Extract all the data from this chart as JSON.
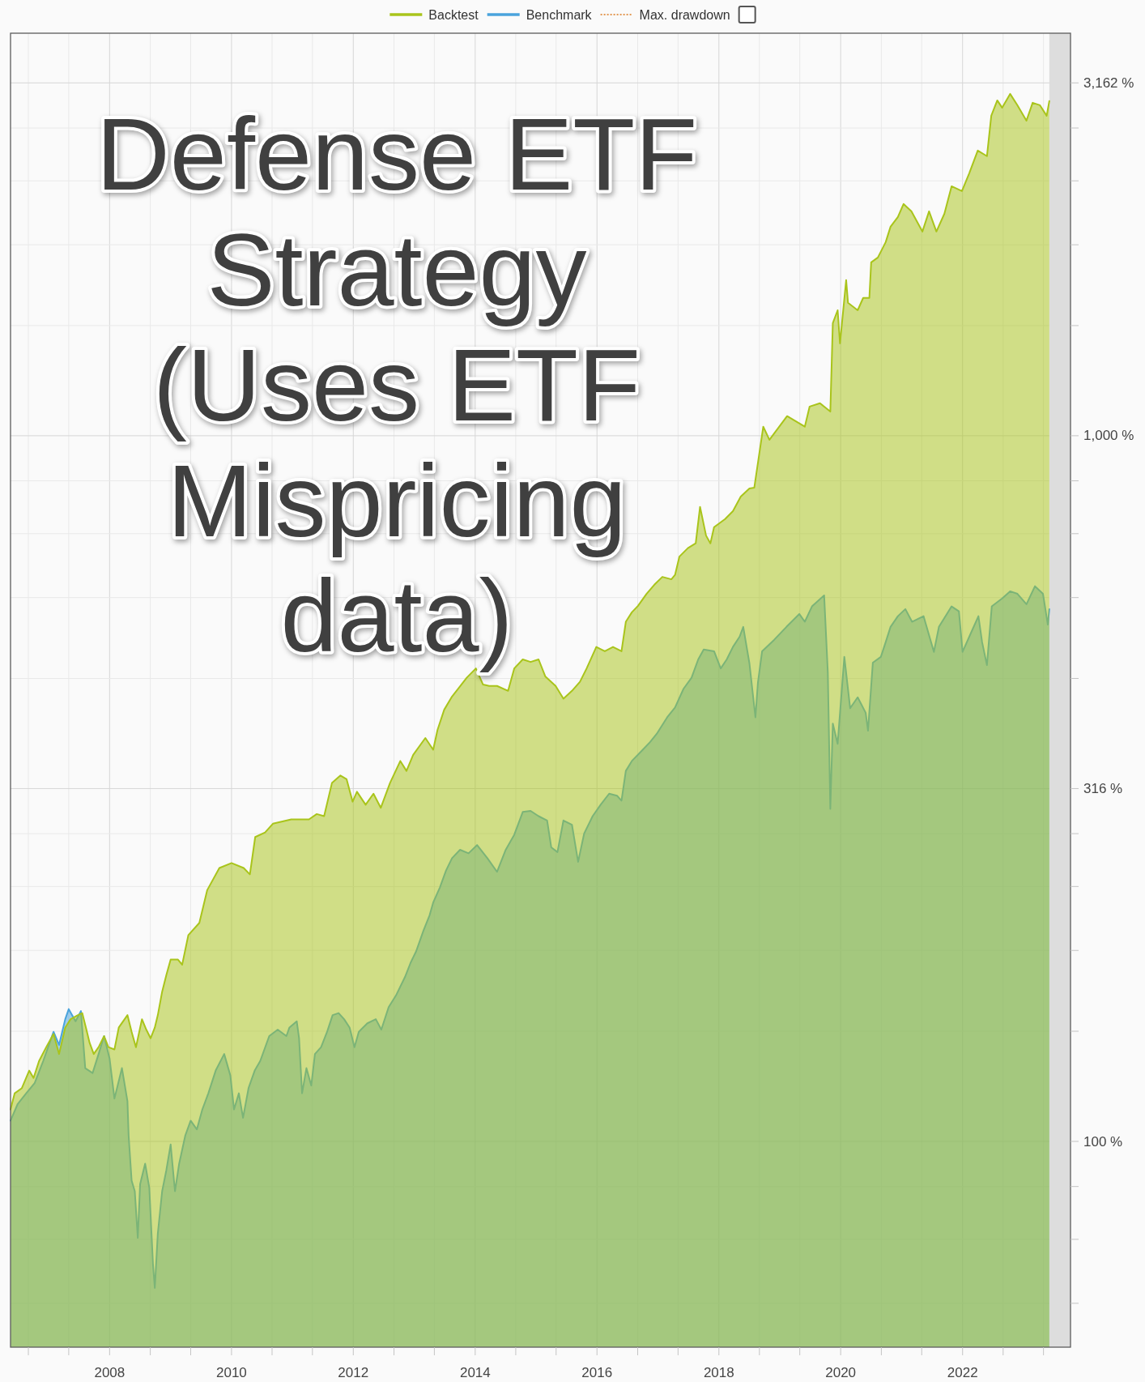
{
  "chart_data": {
    "type": "area",
    "title": "Defense ETF Strategy (Uses ETF Mispricing data)",
    "log": "y",
    "grid": true,
    "legend": "top",
    "xlim": [
      "2006-05-17",
      "2023-10-10"
    ],
    "xticks": [
      {
        "value": "2006-09-01",
        "label": null
      },
      {
        "value": "2007-05-01",
        "label": null
      },
      {
        "value": "2008-01-01",
        "label": "2008"
      },
      {
        "value": "2008-09-01",
        "label": null
      },
      {
        "value": "2009-05-01",
        "label": null
      },
      {
        "value": "2010-01-01",
        "label": "2010"
      },
      {
        "value": "2010-09-01",
        "label": null
      },
      {
        "value": "2011-05-01",
        "label": null
      },
      {
        "value": "2012-01-01",
        "label": "2012"
      },
      {
        "value": "2012-09-01",
        "label": null
      },
      {
        "value": "2013-05-01",
        "label": null
      },
      {
        "value": "2014-01-01",
        "label": "2014"
      },
      {
        "value": "2014-09-01",
        "label": null
      },
      {
        "value": "2015-05-01",
        "label": null
      },
      {
        "value": "2016-01-01",
        "label": "2016"
      },
      {
        "value": "2016-09-01",
        "label": null
      },
      {
        "value": "2017-05-01",
        "label": null
      },
      {
        "value": "2018-01-01",
        "label": "2018"
      },
      {
        "value": "2018-09-01",
        "label": null
      },
      {
        "value": "2019-05-01",
        "label": null
      },
      {
        "value": "2020-01-01",
        "label": "2020"
      },
      {
        "value": "2020-09-01",
        "label": null
      },
      {
        "value": "2021-05-01",
        "label": null
      },
      {
        "value": "2022-01-01",
        "label": "2022"
      },
      {
        "value": "2022-09-01",
        "label": null
      },
      {
        "value": "2023-05-01",
        "label": null
      }
    ],
    "ylim": [
      51.1,
      3719
    ],
    "yticks": [
      {
        "value": 58.97,
        "label": null
      },
      {
        "value": 72.65,
        "label": null
      },
      {
        "value": 86.32,
        "label": null
      },
      {
        "value": 100,
        "label": "100 %"
      },
      {
        "value": 143.25,
        "label": null
      },
      {
        "value": 186.49,
        "label": null
      },
      {
        "value": 229.74,
        "label": null
      },
      {
        "value": 272.98,
        "label": null
      },
      {
        "value": 316.23,
        "label": "316 %"
      },
      {
        "value": 452.98,
        "label": null
      },
      {
        "value": 589.74,
        "label": null
      },
      {
        "value": 726.49,
        "label": null
      },
      {
        "value": 863.25,
        "label": null
      },
      {
        "value": 1000,
        "label": "1,000 %"
      },
      {
        "value": 1432.5,
        "label": null
      },
      {
        "value": 1864.9,
        "label": null
      },
      {
        "value": 2297.4,
        "label": null
      },
      {
        "value": 2729.8,
        "label": null
      },
      {
        "value": 3162.3,
        "label": "3,162 %"
      }
    ],
    "bands": [
      {
        "axis": "x",
        "from": "2023-06-05",
        "to": "2023-10-10",
        "color": "#dddddd"
      }
    ],
    "series": [
      {
        "name": "Backtest",
        "color": "#a9c41b",
        "x": [
          "2006-05-17",
          "2006-06-11",
          "2006-07-24",
          "2006-09-06",
          "2006-10-02",
          "2006-11-04",
          "2006-12-17",
          "2007-01-30",
          "2007-03-04",
          "2007-04-10",
          "2007-05-12",
          "2007-06-25",
          "2007-07-21",
          "2007-08-15",
          "2007-09-03",
          "2007-09-28",
          "2007-10-27",
          "2007-11-29",
          "2007-12-25",
          "2008-01-30",
          "2008-02-25",
          "2008-04-17",
          "2008-05-12",
          "2008-06-07",
          "2008-07-13",
          "2008-08-08",
          "2008-09-03",
          "2008-09-28",
          "2008-10-16",
          "2008-11-11",
          "2008-12-06",
          "2009-01-01",
          "2009-02-14",
          "2009-03-11",
          "2009-04-17",
          "2009-06-22",
          "2009-08-08",
          "2009-10-20",
          "2010-01-01",
          "2010-03-15",
          "2010-04-21",
          "2010-05-23",
          "2010-07-21",
          "2010-09-06",
          "2010-12-25",
          "2011-04-10",
          "2011-05-27",
          "2011-07-10",
          "2011-08-26",
          "2011-10-16",
          "2011-11-22",
          "2011-12-28",
          "2012-01-23",
          "2012-03-15",
          "2012-05-01",
          "2012-06-14",
          "2012-08-08",
          "2012-10-09",
          "2012-11-15",
          "2012-12-25",
          "2013-03-08",
          "2013-04-24",
          "2013-05-20",
          "2013-06-29",
          "2013-08-15",
          "2013-09-21",
          "2013-11-11",
          "2014-01-05",
          "2014-02-17",
          "2014-03-26",
          "2014-05-12",
          "2014-07-17",
          "2014-08-23",
          "2014-10-13",
          "2014-11-29",
          "2015-01-16",
          "2015-02-25",
          "2015-04-28",
          "2015-06-14",
          "2015-08-04",
          "2015-09-21",
          "2015-10-31",
          "2015-12-28",
          "2016-02-17",
          "2016-04-06",
          "2016-05-27",
          "2016-06-22",
          "2016-07-28",
          "2016-09-03",
          "2016-10-24",
          "2016-12-10",
          "2017-01-27",
          "2017-03-22",
          "2017-04-13",
          "2017-05-09",
          "2017-06-29",
          "2017-08-15",
          "2017-09-10",
          "2017-10-16",
          "2017-11-11",
          "2017-12-03",
          "2018-02-07",
          "2018-03-26",
          "2018-05-12",
          "2018-07-03",
          "2018-08-01",
          "2018-09-24",
          "2018-10-31",
          "2019-02-14",
          "2019-05-31",
          "2019-06-29",
          "2019-08-30",
          "2019-10-31",
          "2019-11-15",
          "2019-12-14",
          "2019-12-28",
          "2020-02-03",
          "2020-02-14",
          "2020-04-12",
          "2020-05-15",
          "2020-06-21",
          "2020-07-02",
          "2020-08-11",
          "2020-09-27",
          "2020-10-26",
          "2020-12-09",
          "2021-01-12",
          "2021-02-28",
          "2021-05-05",
          "2021-06-14",
          "2021-07-28",
          "2021-09-14",
          "2021-10-27",
          "2021-12-28",
          "2022-02-10",
          "2022-04-02",
          "2022-05-27",
          "2022-06-22",
          "2022-07-28",
          "2022-08-26",
          "2022-10-13",
          "2022-11-26",
          "2023-01-19",
          "2023-02-25",
          "2023-04-10",
          "2023-05-20",
          "2023-06-05"
        ],
        "values": [
          111,
          117,
          119,
          126,
          123,
          130,
          136,
          142,
          133,
          145,
          149,
          151,
          152,
          144,
          138,
          133,
          136,
          141,
          136,
          135,
          145,
          151,
          143,
          136,
          149,
          144,
          140,
          145,
          151,
          163,
          172,
          181,
          181,
          178,
          196,
          204,
          227,
          244,
          248,
          244,
          239,
          270,
          274,
          282,
          286,
          286,
          291,
          289,
          322,
          330,
          326,
          303,
          313,
          300,
          311,
          297,
          322,
          346,
          335,
          353,
          373,
          359,
          383,
          409,
          427,
          438,
          454,
          468,
          444,
          442,
          442,
          435,
          468,
          482,
          478,
          482,
          456,
          442,
          424,
          435,
          448,
          468,
          502,
          495,
          502,
          495,
          545,
          562,
          574,
          597,
          615,
          631,
          626,
          635,
          674,
          693,
          704,
          793,
          722,
          704,
          742,
          762,
          782,
          820,
          842,
          844,
          1030,
          987,
          1066,
          1030,
          1100,
          1112,
          1082,
          1444,
          1506,
          1352,
          1662,
          1543,
          1506,
          1568,
          1568,
          1761,
          1789,
          1881,
          1978,
          2042,
          2130,
          2080,
          1947,
          2080,
          1947,
          2064,
          2257,
          2222,
          2355,
          2536,
          2490,
          2841,
          2987,
          2917,
          3051,
          2940,
          2796,
          2964,
          2940,
          2841,
          2980
        ]
      },
      {
        "name": "Benchmark",
        "color": "#4aa3dc",
        "x": [
          "2006-05-17",
          "2006-06-29",
          "2006-08-19",
          "2006-10-09",
          "2006-11-29",
          "2007-01-30",
          "2007-03-04",
          "2007-04-10",
          "2007-05-01",
          "2007-06-11",
          "2007-07-13",
          "2007-08-08",
          "2007-09-21",
          "2007-10-27",
          "2007-11-29",
          "2008-01-01",
          "2008-01-30",
          "2008-03-15",
          "2008-04-17",
          "2008-04-24",
          "2008-05-12",
          "2008-05-31",
          "2008-06-18",
          "2008-07-02",
          "2008-08-01",
          "2008-08-26",
          "2008-09-17",
          "2008-09-28",
          "2008-10-16",
          "2008-11-11",
          "2008-12-06",
          "2009-01-01",
          "2009-01-27",
          "2009-02-21",
          "2009-03-30",
          "2009-05-01",
          "2009-06-07",
          "2009-07-10",
          "2009-08-15",
          "2009-09-28",
          "2009-11-18",
          "2009-12-25",
          "2010-01-16",
          "2010-02-14",
          "2010-03-11",
          "2010-04-13",
          "2010-05-20",
          "2010-06-22",
          "2010-08-15",
          "2010-10-05",
          "2010-11-26",
          "2010-12-14",
          "2011-01-27",
          "2011-02-10",
          "2011-02-28",
          "2011-03-26",
          "2011-04-24",
          "2011-05-16",
          "2011-06-22",
          "2011-07-28",
          "2011-08-30",
          "2011-10-05",
          "2011-11-07",
          "2011-12-10",
          "2012-01-08",
          "2012-02-03",
          "2012-03-25",
          "2012-05-15",
          "2012-06-17",
          "2012-07-31",
          "2012-09-13",
          "2012-11-06",
          "2012-12-09",
          "2013-01-12",
          "2013-02-25",
          "2013-04-02",
          "2013-04-24",
          "2013-06-03",
          "2013-07-10",
          "2013-08-15",
          "2013-10-02",
          "2013-11-22",
          "2014-01-12",
          "2014-03-15",
          "2014-05-12",
          "2014-07-03",
          "2014-08-23",
          "2014-10-13",
          "2014-11-29",
          "2015-01-16",
          "2015-03-08",
          "2015-04-02",
          "2015-05-09",
          "2015-06-14",
          "2015-08-04",
          "2015-09-10",
          "2015-10-16",
          "2015-12-06",
          "2016-01-23",
          "2016-03-14",
          "2016-04-30",
          "2016-05-27",
          "2016-06-22",
          "2016-07-28",
          "2016-09-27",
          "2016-11-14",
          "2016-12-24",
          "2017-02-25",
          "2017-04-13",
          "2017-06-03",
          "2017-07-21",
          "2017-08-30",
          "2017-10-02",
          "2017-12-03",
          "2018-01-12",
          "2018-02-17",
          "2018-03-26",
          "2018-05-05",
          "2018-05-27",
          "2018-07-03",
          "2018-08-08",
          "2018-08-23",
          "2018-09-17",
          "2018-11-29",
          "2019-02-10",
          "2019-04-28",
          "2019-05-31",
          "2019-07-13",
          "2019-09-24",
          "2019-10-16",
          "2019-10-31",
          "2019-11-15",
          "2019-12-14",
          "2020-01-23",
          "2020-02-27",
          "2020-04-12",
          "2020-05-30",
          "2020-06-13",
          "2020-07-12",
          "2020-08-29",
          "2020-09-27",
          "2020-10-26",
          "2020-12-09",
          "2021-01-23",
          "2021-03-04",
          "2021-05-12",
          "2021-07-13",
          "2021-08-12",
          "2021-10-27",
          "2021-12-10",
          "2022-01-01",
          "2022-02-10",
          "2022-04-06",
          "2022-04-28",
          "2022-05-27",
          "2022-06-25",
          "2022-08-26",
          "2022-10-13",
          "2022-11-26",
          "2023-01-19",
          "2023-03-11",
          "2023-04-28",
          "2023-05-27",
          "2023-06-05"
        ],
        "values": [
          107,
          113,
          117,
          121,
          130,
          143,
          137,
          149,
          154,
          148,
          153,
          127,
          125,
          133,
          141,
          131,
          115,
          127,
          114,
          102,
          88,
          85,
          73,
          87,
          93,
          86,
          67,
          62,
          74,
          85,
          91,
          99,
          85,
          93,
          102,
          107,
          104,
          111,
          117,
          126,
          133,
          124,
          111,
          117,
          108,
          119,
          126,
          130,
          141,
          144,
          141,
          145,
          148,
          140,
          117,
          127,
          120,
          133,
          136,
          143,
          151,
          152,
          149,
          145,
          136,
          143,
          147,
          149,
          144,
          155,
          161,
          171,
          179,
          186,
          199,
          209,
          218,
          229,
          242,
          252,
          259,
          256,
          263,
          252,
          241,
          259,
          272,
          293,
          294,
          289,
          285,
          261,
          257,
          285,
          281,
          249,
          273,
          289,
          300,
          311,
          309,
          304,
          335,
          346,
          358,
          368,
          378,
          399,
          412,
          438,
          454,
          482,
          498,
          495,
          468,
          482,
          502,
          519,
          536,
          476,
          399,
          447,
          495,
          514,
          536,
          559,
          545,
          573,
          594,
          462,
          296,
          391,
          366,
          486,
          411,
          426,
          405,
          382,
          477,
          486,
          510,
          536,
          555,
          568,
          545,
          555,
          494,
          536,
          573,
          564,
          494,
          519,
          555,
          510,
          473,
          573,
          588,
          602,
          597,
          577,
          612,
          597,
          540,
          568
        ]
      },
      {
        "name": "Max. drawdown",
        "type": "line",
        "color": "#e39a55",
        "line_style": "dotted"
      }
    ]
  }
}
